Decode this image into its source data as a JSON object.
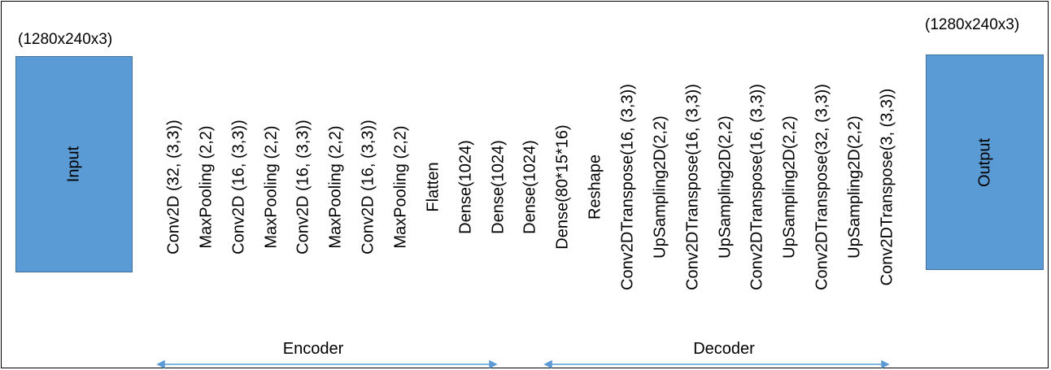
{
  "input": {
    "dims": "(1280x240x3)",
    "label": "Input"
  },
  "output": {
    "dims": "(1280x240x3)",
    "label": "Output"
  },
  "layers": [
    "Conv2D (32, (3,3))",
    "MaxPooling (2,2)",
    "Conv2D (16, (3,3))",
    "MaxPooling (2,2)",
    "Conv2D (16, (3,3))",
    "MaxPooling (2,2)",
    "Conv2D (16, (3,3))",
    "MaxPooling (2,2)",
    "Flatten",
    "Dense(1024)",
    "Dense(1024)",
    "Dense(1024)",
    "Dense(80*15*16)",
    "Reshape",
    "Conv2DTranspose(16, (3,3))",
    "UpSampling2D(2,2)",
    "Conv2DTranspose(16, (3,3))",
    "UpSampling2D(2,2)",
    "Conv2DTranspose(16, (3,3))",
    "UpSampling2D(2,2)",
    "Conv2DTranspose(32, (3,3))",
    "UpSampling2D(2,2)",
    "Conv2DTranspose(3, (3,3))"
  ],
  "sections": {
    "encoder": "Encoder",
    "decoder": "Decoder"
  },
  "colors": {
    "box_fill": "#5b9bd5",
    "box_border": "#41719c",
    "arrow": "#5b9bd5"
  }
}
